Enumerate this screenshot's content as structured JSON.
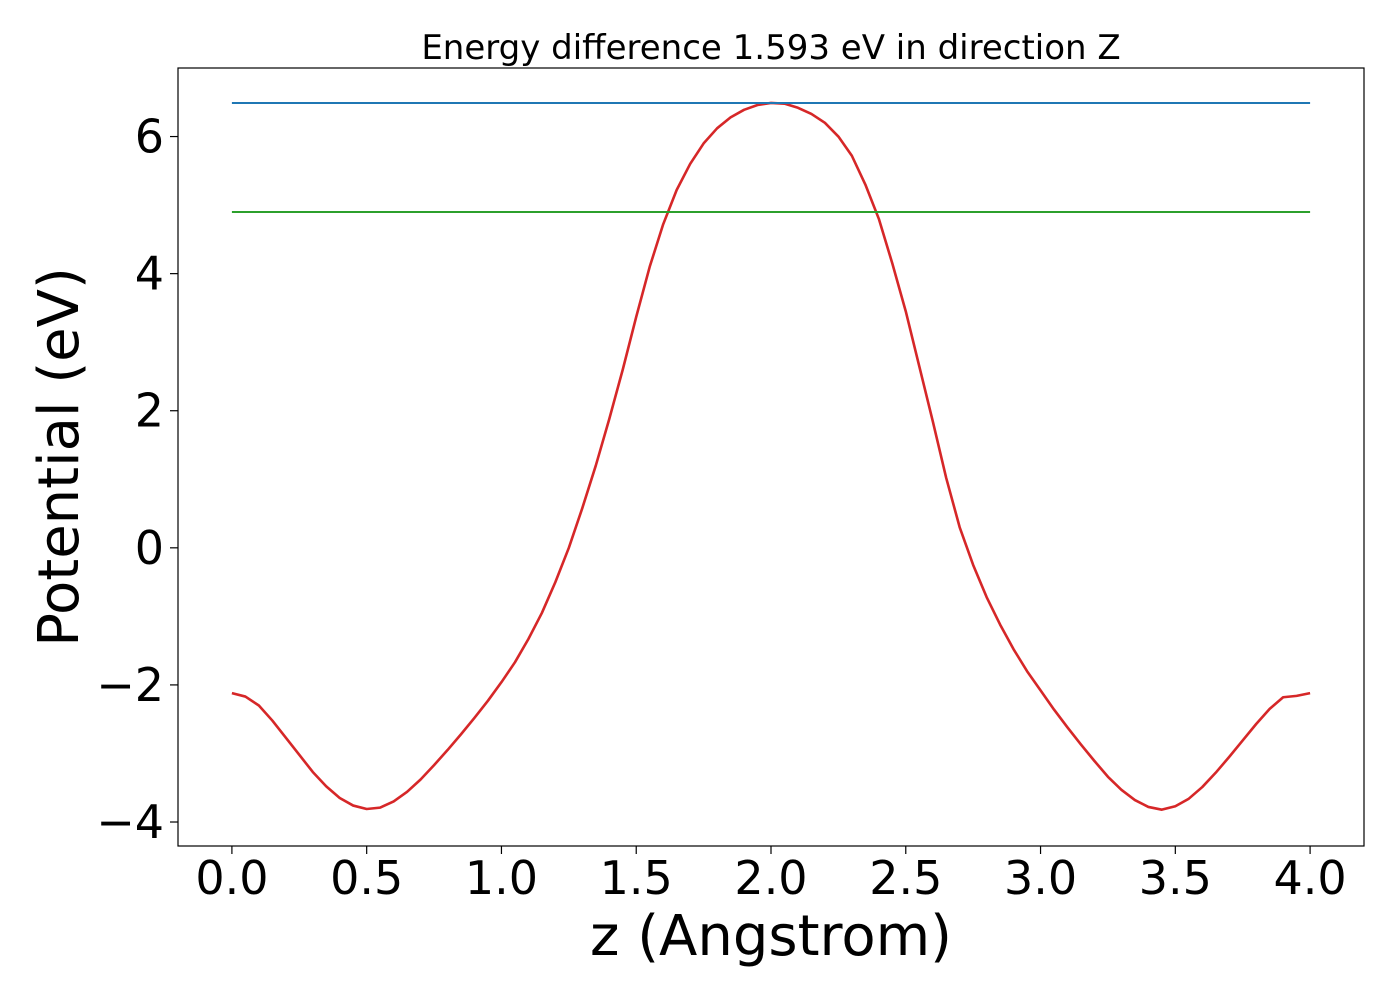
{
  "chart_data": {
    "type": "line",
    "title": "Energy difference 1.593 eV in direction Z",
    "xlabel": "z (Angstrom)",
    "ylabel": "Potential (eV)",
    "xlim": [
      -0.2,
      4.2
    ],
    "ylim": [
      -4.35,
      7.0
    ],
    "xticks": [
      0.0,
      0.5,
      1.0,
      1.5,
      2.0,
      2.5,
      3.0,
      3.5,
      4.0
    ],
    "xtick_labels": [
      "0.0",
      "0.5",
      "1.0",
      "1.5",
      "2.0",
      "2.5",
      "3.0",
      "3.5",
      "4.0"
    ],
    "yticks": [
      -4,
      -2,
      0,
      2,
      4,
      6
    ],
    "ytick_labels": [
      "−4",
      "−2",
      "0",
      "2",
      "4",
      "6"
    ],
    "grid": false,
    "series": [
      {
        "color": "#d62728",
        "x": [
          0.0,
          0.05,
          0.1,
          0.15,
          0.2,
          0.25,
          0.3,
          0.35,
          0.4,
          0.45,
          0.5,
          0.55,
          0.6,
          0.65,
          0.7,
          0.75,
          0.8,
          0.85,
          0.9,
          0.95,
          1.0,
          1.05,
          1.1,
          1.15,
          1.2,
          1.25,
          1.3,
          1.35,
          1.4,
          1.45,
          1.5,
          1.55,
          1.6,
          1.65,
          1.7,
          1.75,
          1.8,
          1.85,
          1.9,
          1.95,
          2.0,
          2.05,
          2.1,
          2.15,
          2.2,
          2.25,
          2.3,
          2.35,
          2.4,
          2.45,
          2.5,
          2.55,
          2.6,
          2.65,
          2.7,
          2.75,
          2.8,
          2.85,
          2.9,
          2.95,
          3.0,
          3.05,
          3.1,
          3.15,
          3.2,
          3.25,
          3.3,
          3.35,
          3.4,
          3.45,
          3.5,
          3.55,
          3.6,
          3.65,
          3.7,
          3.75,
          3.8,
          3.85,
          3.9,
          3.95,
          4.0
        ],
        "y": [
          -2.12,
          -2.17,
          -2.3,
          -2.52,
          -2.77,
          -3.02,
          -3.27,
          -3.48,
          -3.65,
          -3.76,
          -3.81,
          -3.79,
          -3.7,
          -3.56,
          -3.38,
          -3.17,
          -2.95,
          -2.72,
          -2.48,
          -2.23,
          -1.96,
          -1.67,
          -1.33,
          -0.95,
          -0.5,
          0.0,
          0.58,
          1.2,
          1.88,
          2.6,
          3.37,
          4.1,
          4.72,
          5.22,
          5.6,
          5.9,
          6.12,
          6.28,
          6.39,
          6.46,
          6.49,
          6.48,
          6.42,
          6.33,
          6.2,
          6.0,
          5.72,
          5.3,
          4.8,
          4.15,
          3.45,
          2.65,
          1.85,
          1.02,
          0.3,
          -0.25,
          -0.72,
          -1.12,
          -1.48,
          -1.8,
          -2.08,
          -2.36,
          -2.62,
          -2.87,
          -3.11,
          -3.34,
          -3.53,
          -3.68,
          -3.78,
          -3.82,
          -3.77,
          -3.66,
          -3.49,
          -3.28,
          -3.05,
          -2.81,
          -2.57,
          -2.35,
          -2.18,
          -2.16,
          -2.12
        ]
      },
      {
        "color": "#1f77b4",
        "x": [
          0.0,
          4.0
        ],
        "y": [
          6.49,
          6.49
        ]
      },
      {
        "color": "#2ca02c",
        "x": [
          0.0,
          4.0
        ],
        "y": [
          4.9,
          4.9
        ]
      }
    ]
  }
}
